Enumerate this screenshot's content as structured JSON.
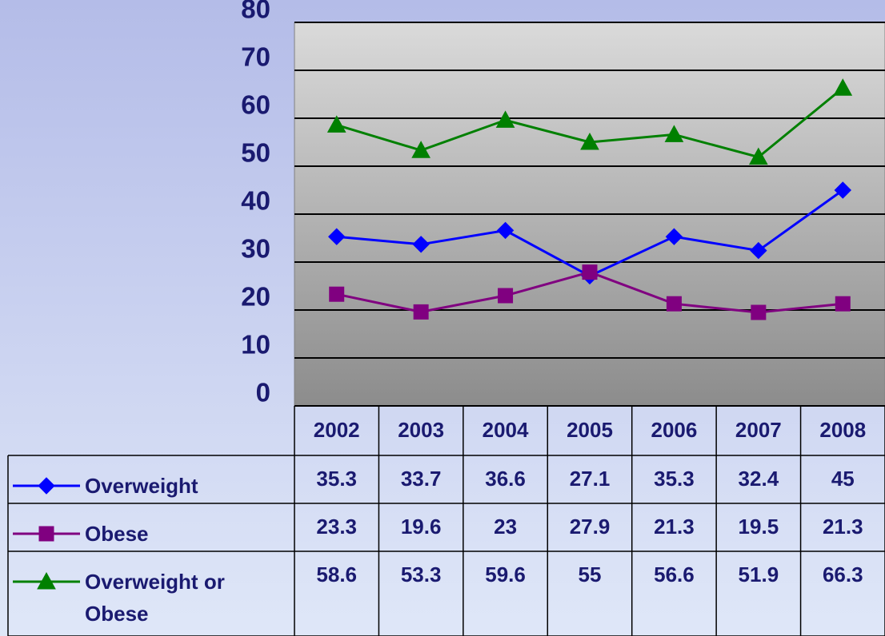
{
  "chart_data": {
    "type": "line",
    "categories": [
      "2002",
      "2003",
      "2004",
      "2005",
      "2006",
      "2007",
      "2008"
    ],
    "series": [
      {
        "name": "Overweight",
        "color": "#0000ff",
        "marker": "diamond",
        "values": [
          35.3,
          33.7,
          36.6,
          27.1,
          35.3,
          32.4,
          45
        ]
      },
      {
        "name": "Obese",
        "color": "#800080",
        "marker": "square",
        "values": [
          23.3,
          19.6,
          23,
          27.9,
          21.3,
          19.5,
          21.3
        ]
      },
      {
        "name": "Overweight or Obese",
        "color": "#008000",
        "marker": "triangle",
        "values": [
          58.6,
          53.3,
          59.6,
          55,
          56.6,
          51.9,
          66.3
        ]
      }
    ],
    "ylim": [
      0,
      80
    ],
    "yticks": [
      0,
      10,
      20,
      30,
      40,
      50,
      60,
      70,
      80
    ],
    "grid": true
  }
}
